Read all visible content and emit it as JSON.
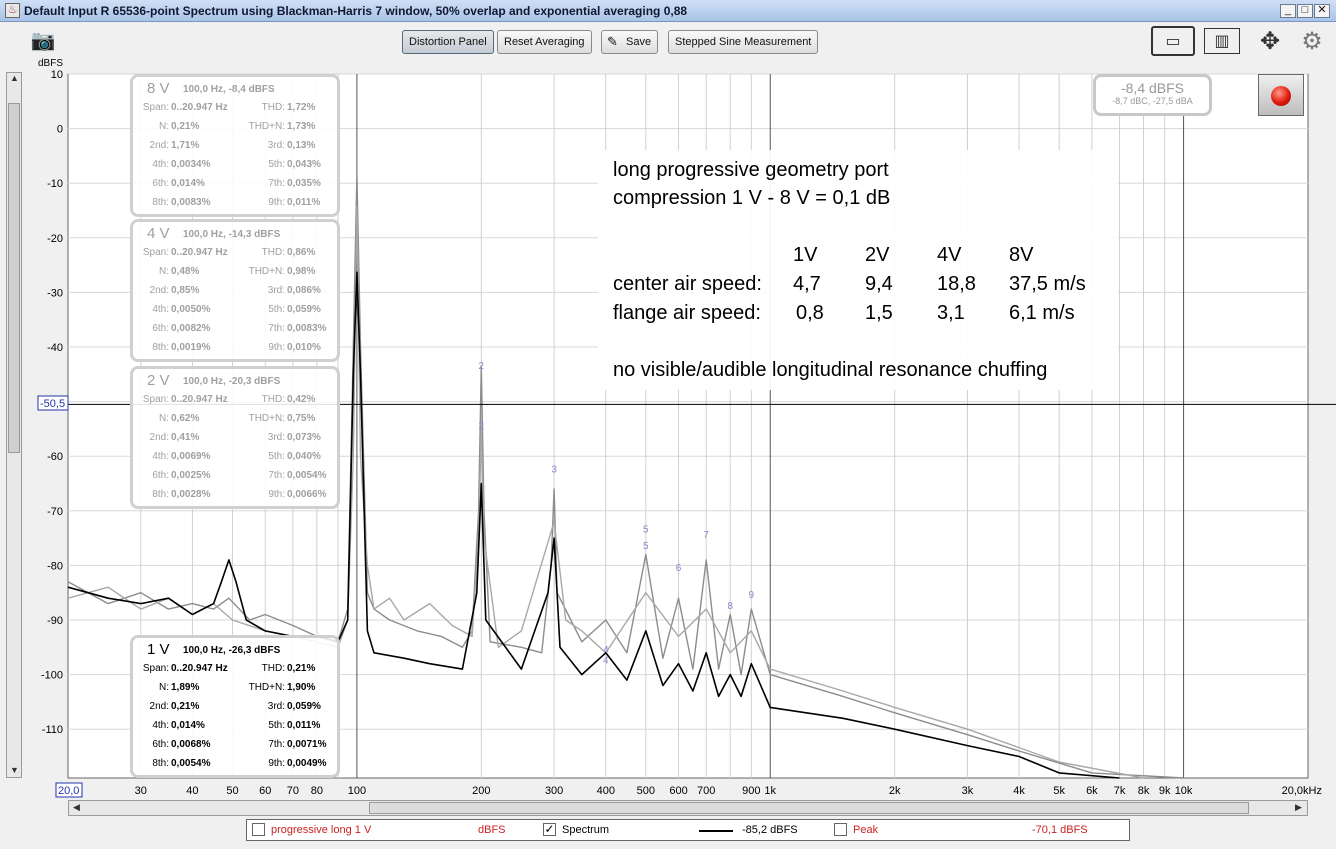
{
  "window": {
    "title": "Default Input R 65536-point Spectrum using Blackman-Harris 7 window, 50% overlap and exponential averaging 0,88"
  },
  "toolbar": {
    "distortion_panel": "Distortion Panel",
    "reset_averaging": "Reset Averaging",
    "save": "Save",
    "stepped_sine": "Stepped Sine Measurement"
  },
  "level_meter": {
    "main": "-8,4 dBFS",
    "sub": "-8,7 dBC, -27,5 dBA"
  },
  "cursor": {
    "y_value": -50.5,
    "y_label": "-50,5",
    "x_label": "20,0"
  },
  "annotation": {
    "line1": "long progressive geometry port",
    "line2": "compression 1 V - 8 V = 0,1 dB",
    "header": [
      "1V",
      "2V",
      "4V",
      "8V"
    ],
    "row1_label": "center air speed:",
    "row1": [
      "4,7",
      "9,4",
      "18,8",
      "37,5 m/s"
    ],
    "row2_label": "flange air speed:",
    "row2": [
      "0,8",
      "1,5",
      "3,1",
      "6,1  m/s"
    ],
    "line_last": "no visible/audible longitudinal resonance chuffing"
  },
  "panels": [
    {
      "title": "8 V",
      "sub": "100,0 Hz, -8,4 dBFS",
      "style": "faded",
      "rows": [
        [
          "Span:",
          "0..20.947 Hz",
          "THD:",
          "1,72%"
        ],
        [
          "N:",
          "0,21%",
          "THD+N:",
          "1,73%"
        ],
        [
          "2nd:",
          "1,71%",
          "3rd:",
          "0,13%"
        ],
        [
          "4th:",
          "0,0034%",
          "5th:",
          "0,043%"
        ],
        [
          "6th:",
          "0,014%",
          "7th:",
          "0,035%"
        ],
        [
          "8th:",
          "0,0083%",
          "9th:",
          "0,011%"
        ]
      ]
    },
    {
      "title": "4 V",
      "sub": "100,0 Hz, -14,3 dBFS",
      "style": "faded",
      "rows": [
        [
          "Span:",
          "0..20.947 Hz",
          "THD:",
          "0,86%"
        ],
        [
          "N:",
          "0,48%",
          "THD+N:",
          "0,98%"
        ],
        [
          "2nd:",
          "0,85%",
          "3rd:",
          "0,086%"
        ],
        [
          "4th:",
          "0,0050%",
          "5th:",
          "0,059%"
        ],
        [
          "6th:",
          "0,0082%",
          "7th:",
          "0,0083%"
        ],
        [
          "8th:",
          "0,0019%",
          "9th:",
          "0,010%"
        ]
      ]
    },
    {
      "title": "2 V",
      "sub": "100,0 Hz, -20,3 dBFS",
      "style": "faded",
      "rows": [
        [
          "Span:",
          "0..20.947 Hz",
          "THD:",
          "0,42%"
        ],
        [
          "N:",
          "0,62%",
          "THD+N:",
          "0,75%"
        ],
        [
          "2nd:",
          "0,41%",
          "3rd:",
          "0,073%"
        ],
        [
          "4th:",
          "0,0069%",
          "5th:",
          "0,040%"
        ],
        [
          "6th:",
          "0,0025%",
          "7th:",
          "0,0054%"
        ],
        [
          "8th:",
          "0,0028%",
          "9th:",
          "0,0066%"
        ]
      ]
    },
    {
      "title": "1 V",
      "sub": "100,0 Hz, -26,3 dBFS",
      "style": "dark",
      "rows": [
        [
          "Span:",
          "0..20.947 Hz",
          "THD:",
          "0,21%"
        ],
        [
          "N:",
          "1,89%",
          "THD+N:",
          "1,90%"
        ],
        [
          "2nd:",
          "0,21%",
          "3rd:",
          "0,059%"
        ],
        [
          "4th:",
          "0,014%",
          "5th:",
          "0,011%"
        ],
        [
          "6th:",
          "0,0068%",
          "7th:",
          "0,0071%"
        ],
        [
          "8th:",
          "0,0054%",
          "9th:",
          "0,0049%"
        ]
      ]
    }
  ],
  "legend": {
    "item1": "progressive long 1 V",
    "item1_unit": "dBFS",
    "item2": "Spectrum",
    "item2_value": "-85,2 dBFS",
    "item3": "Peak",
    "item3_value": "-70,1 dBFS",
    "accent_red": "#cc2222"
  },
  "chart_data": {
    "type": "line",
    "ylabel": "dBFS",
    "xlabel": "",
    "x_scale": "log",
    "xlim": [
      20,
      20000
    ],
    "ylim": [
      -120,
      10
    ],
    "grid": true,
    "y_ticks": [
      10,
      0,
      -10,
      -20,
      -30,
      -40,
      -50,
      -60,
      -70,
      -80,
      -90,
      -100,
      -110
    ],
    "x_ticks": [
      {
        "v": 30,
        "label": "30"
      },
      {
        "v": 40,
        "label": "40"
      },
      {
        "v": 50,
        "label": "50"
      },
      {
        "v": 60,
        "label": "60"
      },
      {
        "v": 70,
        "label": "70"
      },
      {
        "v": 80,
        "label": "80"
      },
      {
        "v": 100,
        "label": "100"
      },
      {
        "v": 200,
        "label": "200"
      },
      {
        "v": 300,
        "label": "300"
      },
      {
        "v": 400,
        "label": "400"
      },
      {
        "v": 500,
        "label": "500"
      },
      {
        "v": 600,
        "label": "600"
      },
      {
        "v": 700,
        "label": "700"
      },
      {
        "v": 900,
        "label": "900"
      },
      {
        "v": 1000,
        "label": "1k"
      },
      {
        "v": 2000,
        "label": "2k"
      },
      {
        "v": 3000,
        "label": "3k"
      },
      {
        "v": 4000,
        "label": "4k"
      },
      {
        "v": 5000,
        "label": "5k"
      },
      {
        "v": 6000,
        "label": "6k"
      },
      {
        "v": 7000,
        "label": "7k"
      },
      {
        "v": 8000,
        "label": "8k"
      },
      {
        "v": 9000,
        "label": "9k"
      },
      {
        "v": 10000,
        "label": "10k"
      },
      {
        "v": 20000,
        "label": "20,0kHz"
      }
    ],
    "harmonic_markers": [
      {
        "label": "2",
        "x": 200,
        "y": -44
      },
      {
        "label": "2",
        "x": 200,
        "y": -55
      },
      {
        "label": "3",
        "x": 300,
        "y": -63
      },
      {
        "label": "5",
        "x": 500,
        "y": -74
      },
      {
        "label": "5",
        "x": 500,
        "y": -77
      },
      {
        "label": "6",
        "x": 600,
        "y": -81
      },
      {
        "label": "7",
        "x": 700,
        "y": -75
      },
      {
        "label": "8",
        "x": 800,
        "y": -88
      },
      {
        "label": "9",
        "x": 900,
        "y": -86
      },
      {
        "label": "4",
        "x": 400,
        "y": -96
      },
      {
        "label": "4",
        "x": 400,
        "y": -98
      }
    ],
    "series": [
      {
        "color": "#8c8c8c",
        "points": [
          [
            20,
            -83
          ],
          [
            25,
            -87
          ],
          [
            30,
            -85
          ],
          [
            35,
            -88
          ],
          [
            40,
            -87
          ],
          [
            45,
            -88
          ],
          [
            49,
            -86
          ],
          [
            55,
            -90
          ],
          [
            60,
            -89
          ],
          [
            70,
            -91
          ],
          [
            80,
            -93
          ],
          [
            90,
            -94
          ],
          [
            95,
            -88
          ],
          [
            98,
            -40
          ],
          [
            100,
            -8.4
          ],
          [
            102,
            -40
          ],
          [
            106,
            -85
          ],
          [
            110,
            -88
          ],
          [
            120,
            -90
          ],
          [
            140,
            -92
          ],
          [
            160,
            -93
          ],
          [
            180,
            -95
          ],
          [
            190,
            -92
          ],
          [
            197,
            -70
          ],
          [
            200,
            -43.5
          ],
          [
            203,
            -70
          ],
          [
            210,
            -94
          ],
          [
            250,
            -95
          ],
          [
            280,
            -96
          ],
          [
            295,
            -80
          ],
          [
            300,
            -66
          ],
          [
            305,
            -85
          ],
          [
            350,
            -94
          ],
          [
            400,
            -90
          ],
          [
            450,
            -96
          ],
          [
            500,
            -78
          ],
          [
            550,
            -97
          ],
          [
            600,
            -86
          ],
          [
            650,
            -99
          ],
          [
            700,
            -79
          ],
          [
            750,
            -99
          ],
          [
            800,
            -89
          ],
          [
            850,
            -100
          ],
          [
            900,
            -88
          ],
          [
            1000,
            -100
          ],
          [
            1500,
            -104
          ],
          [
            2000,
            -107
          ],
          [
            3000,
            -111
          ],
          [
            4000,
            -114
          ],
          [
            6000,
            -118
          ],
          [
            10000,
            -120
          ]
        ]
      },
      {
        "color": "#a8a8a8",
        "points": [
          [
            20,
            -86
          ],
          [
            25,
            -84
          ],
          [
            30,
            -88
          ],
          [
            35,
            -86
          ],
          [
            40,
            -89
          ],
          [
            45,
            -87
          ],
          [
            50,
            -90
          ],
          [
            60,
            -92
          ],
          [
            70,
            -93
          ],
          [
            80,
            -94
          ],
          [
            90,
            -95
          ],
          [
            95,
            -90
          ],
          [
            98,
            -60
          ],
          [
            100,
            -14.3
          ],
          [
            102,
            -60
          ],
          [
            106,
            -80
          ],
          [
            110,
            -88
          ],
          [
            120,
            -86
          ],
          [
            130,
            -90
          ],
          [
            150,
            -87
          ],
          [
            170,
            -91
          ],
          [
            190,
            -93
          ],
          [
            197,
            -75
          ],
          [
            200,
            -55
          ],
          [
            203,
            -75
          ],
          [
            220,
            -95
          ],
          [
            250,
            -92
          ],
          [
            300,
            -72
          ],
          [
            320,
            -90
          ],
          [
            350,
            -92
          ],
          [
            400,
            -96
          ],
          [
            500,
            -85
          ],
          [
            600,
            -93
          ],
          [
            700,
            -88
          ],
          [
            800,
            -96
          ],
          [
            900,
            -92
          ],
          [
            1000,
            -99
          ],
          [
            1500,
            -103
          ],
          [
            2000,
            -106
          ],
          [
            3000,
            -110
          ],
          [
            5000,
            -116
          ],
          [
            8000,
            -120
          ]
        ]
      },
      {
        "color": "#000000",
        "points": [
          [
            20,
            -84
          ],
          [
            25,
            -86
          ],
          [
            30,
            -87
          ],
          [
            35,
            -86
          ],
          [
            40,
            -89
          ],
          [
            45,
            -87
          ],
          [
            47,
            -83
          ],
          [
            49,
            -79
          ],
          [
            51,
            -83
          ],
          [
            54,
            -90
          ],
          [
            60,
            -92
          ],
          [
            70,
            -93
          ],
          [
            80,
            -93
          ],
          [
            90,
            -94
          ],
          [
            95,
            -90
          ],
          [
            98,
            -45
          ],
          [
            100,
            -26.3
          ],
          [
            102,
            -45
          ],
          [
            106,
            -92
          ],
          [
            110,
            -96
          ],
          [
            130,
            -97
          ],
          [
            150,
            -98
          ],
          [
            180,
            -99
          ],
          [
            195,
            -85
          ],
          [
            200,
            -65
          ],
          [
            205,
            -90
          ],
          [
            250,
            -99
          ],
          [
            290,
            -85
          ],
          [
            300,
            -75
          ],
          [
            310,
            -95
          ],
          [
            350,
            -100
          ],
          [
            400,
            -96
          ],
          [
            450,
            -101
          ],
          [
            500,
            -92
          ],
          [
            550,
            -102
          ],
          [
            600,
            -98
          ],
          [
            650,
            -103
          ],
          [
            700,
            -96
          ],
          [
            750,
            -104
          ],
          [
            800,
            -100
          ],
          [
            850,
            -104
          ],
          [
            900,
            -98
          ],
          [
            1000,
            -106
          ],
          [
            1500,
            -108
          ],
          [
            2000,
            -110
          ],
          [
            3000,
            -113
          ],
          [
            4000,
            -115
          ],
          [
            5000,
            -118
          ],
          [
            7000,
            -120
          ]
        ]
      }
    ]
  }
}
